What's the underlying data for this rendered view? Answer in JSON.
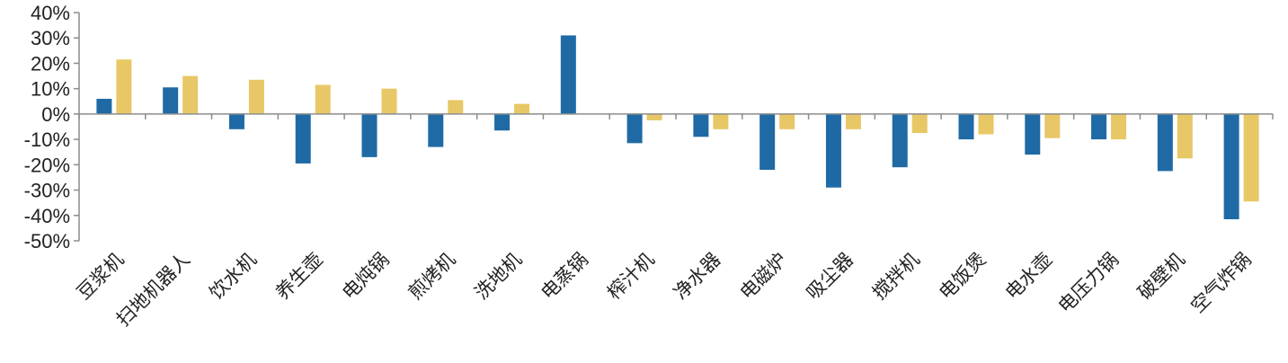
{
  "chart_data": {
    "type": "bar",
    "categories": [
      "豆浆机",
      "扫地机器人",
      "饮水机",
      "养生壶",
      "电炖锅",
      "煎烤机",
      "洗地机",
      "电蒸锅",
      "榨汁机",
      "净水器",
      "电磁炉",
      "吸尘器",
      "搅拌机",
      "电饭煲",
      "电水壶",
      "电压力锅",
      "破壁机",
      "空气炸锅"
    ],
    "series": [
      {
        "name": "",
        "color": "#1f6aa5",
        "values": [
          6,
          10.5,
          -6,
          -19.5,
          -17,
          -13,
          -6.5,
          31,
          -11.5,
          -9,
          -22,
          -29,
          -21,
          -10,
          -16,
          -10,
          -22.5,
          -41.5
        ]
      },
      {
        "name": "",
        "color": "#e8c766",
        "values": [
          21.5,
          15,
          13.5,
          11.5,
          10,
          5.5,
          4,
          0,
          -2.5,
          -6,
          -6,
          -6,
          -7.5,
          -8,
          -9.5,
          -10,
          -17.5,
          -34.5
        ]
      }
    ],
    "y_ticks": [
      "40%",
      "30%",
      "20%",
      "10%",
      "0%",
      "-10%",
      "-20%",
      "-30%",
      "-40%",
      "-50%"
    ],
    "ylim": [
      -50,
      40
    ],
    "grid": false,
    "legend": "none"
  }
}
